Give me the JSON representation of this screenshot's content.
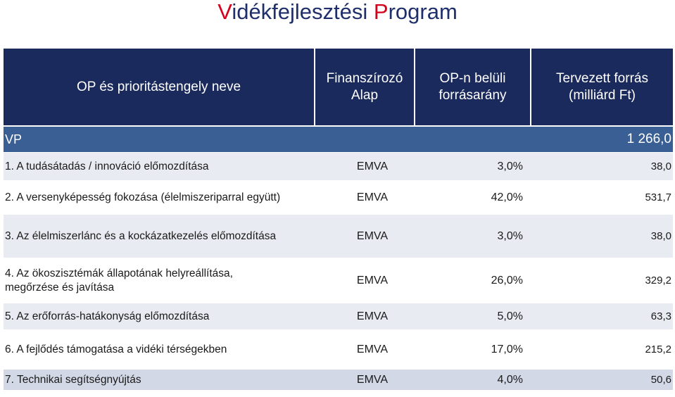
{
  "title": {
    "first_letter": "V",
    "part1": "idékfejlesztési ",
    "second_letter": "P",
    "part2": "rogram"
  },
  "header": {
    "col_name": "OP és prioritástengely neve",
    "col_fund_line1": "Finanszírozó",
    "col_fund_line2": "Alap",
    "col_share_line1": "OP-n belüli",
    "col_share_line2": "forrásarány",
    "col_source_line1": "Tervezett forrás",
    "col_source_line2": "(milliárd Ft)"
  },
  "vp": {
    "label": "VP",
    "total": "1 266,0"
  },
  "rows": [
    {
      "name": "1. A tudásátadás / innováció előmozdítása",
      "fund": "EMVA",
      "share": "3,0%",
      "amount": "38,0"
    },
    {
      "name": "2. A versenyképesség fokozása (élelmiszeriparral együtt)",
      "fund": "EMVA",
      "share": "42,0%",
      "amount": "531,7"
    },
    {
      "name": "3. Az élelmiszerlánc és a kockázatkezelés előmozdítása",
      "fund": "EMVA",
      "share": "3,0%",
      "amount": "38,0"
    },
    {
      "name_line1": "4. Az ökoszisztémák állapotának helyreállítása,",
      "name_line2": "megőrzése és javítása",
      "fund": "EMVA",
      "share": "26,0%",
      "amount": "329,2"
    },
    {
      "name": "5. Az erőforrás-hatákonyság előmozdítása",
      "fund": "EMVA",
      "share": "5,0%",
      "amount": "63,3"
    },
    {
      "name": "6. A fejlődés támogatása a vidéki térségekben",
      "fund": "EMVA",
      "share": "17,0%",
      "amount": "215,2"
    },
    {
      "name": "7. Technikai segítségnyújtás",
      "fund": "EMVA",
      "share": "4,0%",
      "amount": "50,6"
    }
  ]
}
